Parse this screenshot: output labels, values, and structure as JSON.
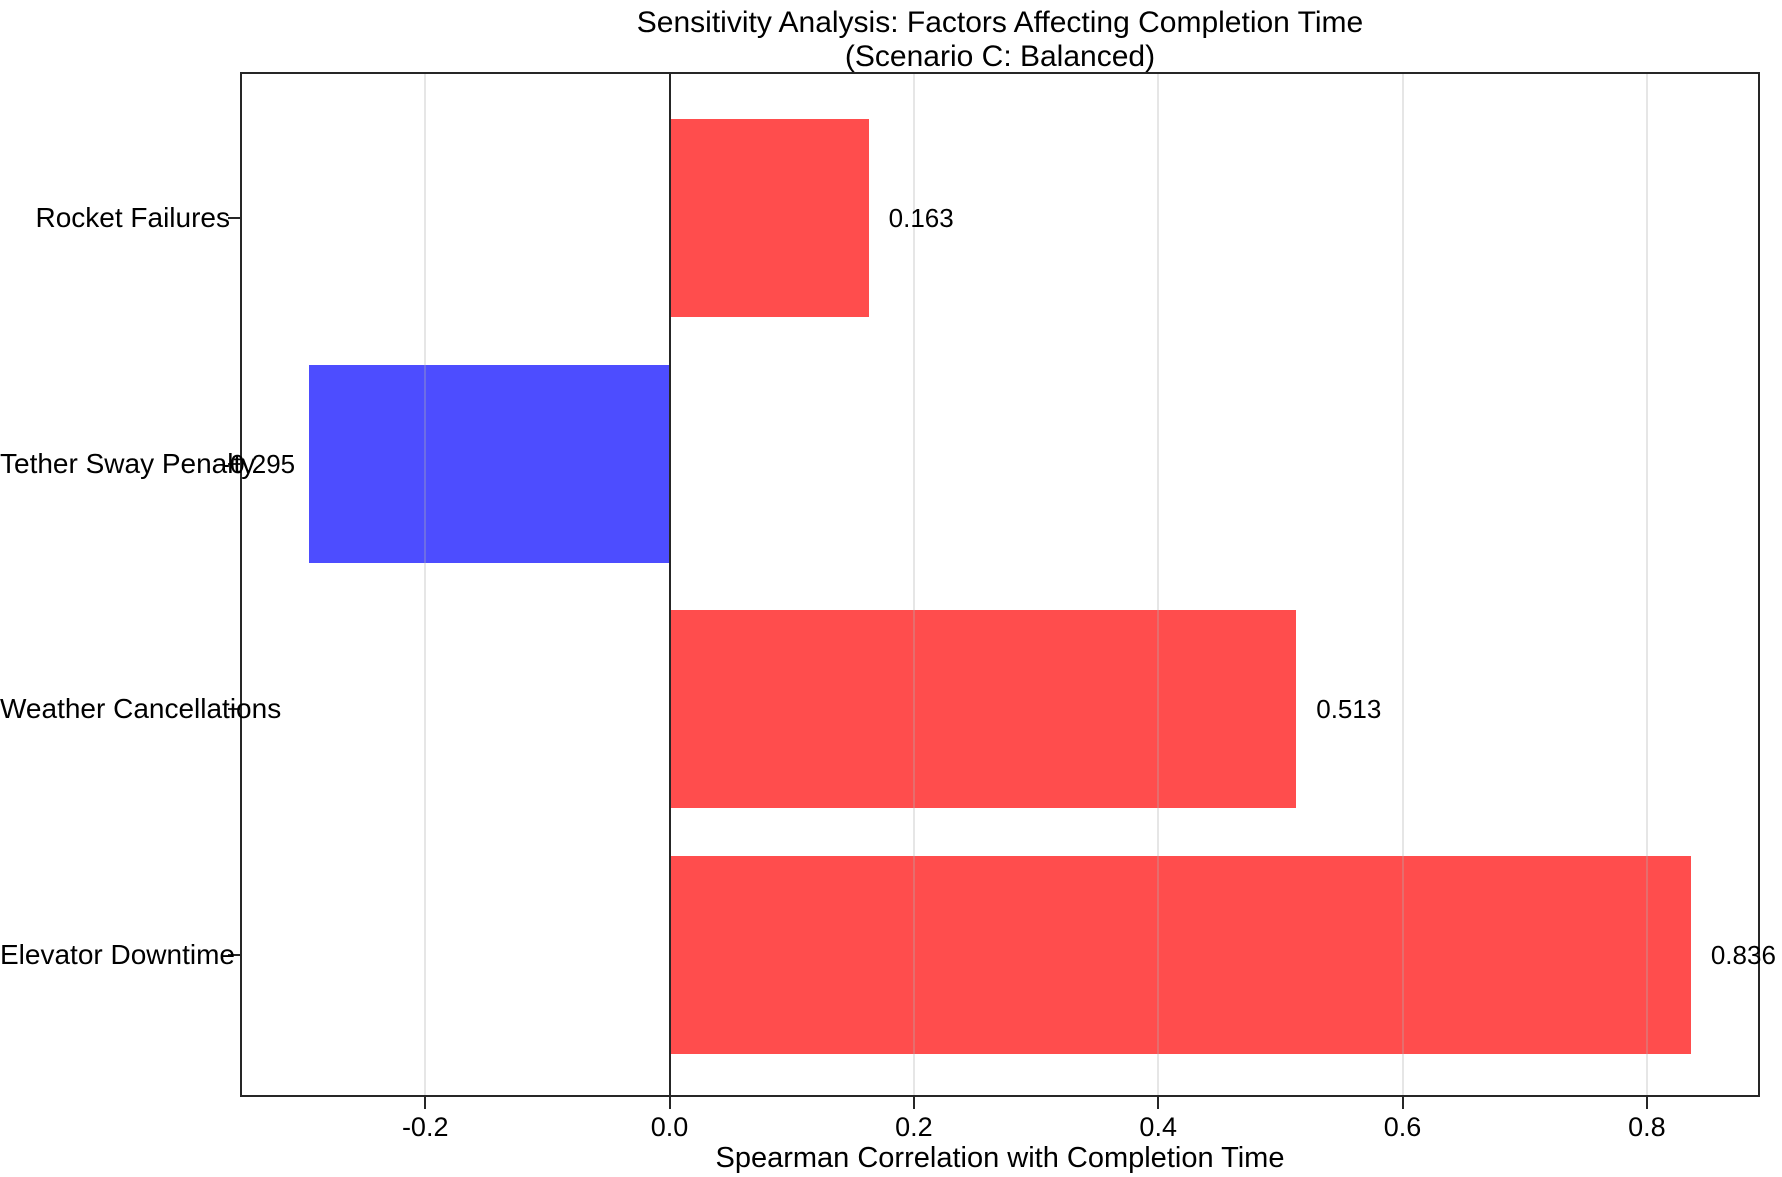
{
  "chart_data": {
    "type": "bar",
    "orientation": "horizontal",
    "title": "Sensitivity Analysis: Factors Affecting Completion Time",
    "subtitle": "(Scenario C: Balanced)",
    "xlabel": "Spearman Correlation with Completion Time",
    "ylabel": "",
    "categories": [
      "Rocket Failures",
      "Tether Sway Penalty",
      "Weather Cancellations",
      "Elevator Downtime"
    ],
    "values": [
      0.163,
      -0.295,
      0.513,
      0.836
    ],
    "value_labels": [
      "0.163",
      "-0.295",
      "0.513",
      "0.836"
    ],
    "positive_color": "#ff4d4d",
    "negative_color": "#4d4dff",
    "x_ticks": [
      -0.2,
      0.0,
      0.2,
      0.4,
      0.6,
      0.8
    ],
    "x_tick_labels": [
      "-0.2",
      "0.0",
      "0.2",
      "0.4",
      "0.6",
      "0.8"
    ],
    "xlim": [
      -0.3516,
      0.8926
    ],
    "grid": true,
    "grid_color_hex": "#b0b0b0",
    "zero_line": true,
    "legend": "none"
  }
}
